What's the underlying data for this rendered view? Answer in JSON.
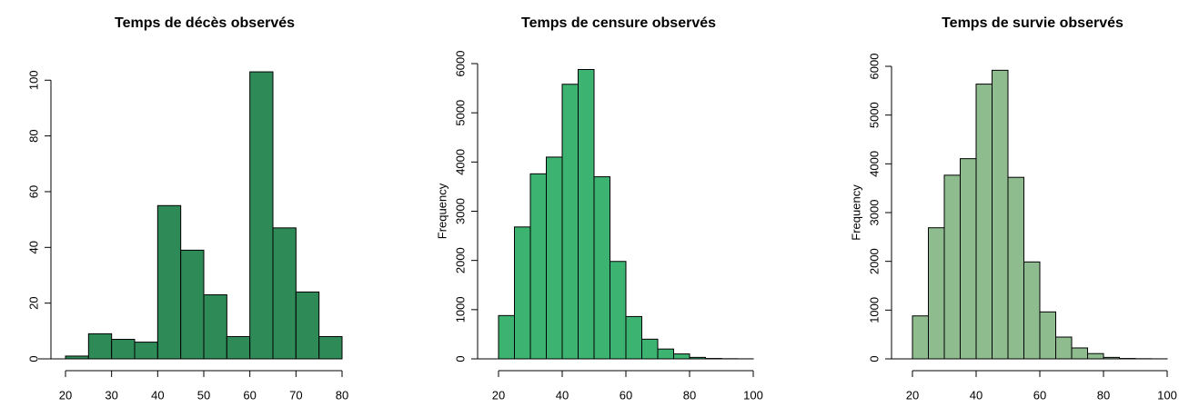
{
  "chart_data": [
    {
      "type": "histogram",
      "title": "Temps de décès observés",
      "bins": [
        20,
        25,
        30,
        35,
        40,
        45,
        50,
        55,
        60,
        65,
        70,
        75,
        80
      ],
      "values": [
        1,
        9,
        7,
        6,
        55,
        39,
        23,
        8,
        103,
        47,
        24,
        8
      ],
      "color": "#2e8b57",
      "xlim": [
        20,
        80
      ],
      "ylim": [
        0,
        104
      ],
      "xticks": [
        20,
        30,
        40,
        50,
        60,
        70,
        80
      ],
      "yticks": [
        0,
        20,
        40,
        60,
        80,
        100
      ]
    },
    {
      "type": "histogram",
      "title": "Temps de censure observés",
      "ylabel": "Frequency",
      "bins": [
        20,
        25,
        30,
        35,
        40,
        45,
        50,
        55,
        60,
        65,
        70,
        75,
        80,
        85,
        90,
        95,
        100
      ],
      "values": [
        880,
        2680,
        3760,
        4100,
        5580,
        5880,
        3700,
        1980,
        860,
        400,
        200,
        100,
        30,
        8,
        3,
        1
      ],
      "color": "#3cb371",
      "xlim": [
        20,
        100
      ],
      "ylim": [
        0,
        6000
      ],
      "xticks": [
        20,
        40,
        60,
        80,
        100
      ],
      "yticks": [
        0,
        1000,
        2000,
        3000,
        4000,
        5000,
        6000
      ]
    },
    {
      "type": "histogram",
      "title": "Temps de survie observés",
      "ylabel": "Frequency",
      "bins": [
        20,
        25,
        30,
        35,
        40,
        45,
        50,
        55,
        60,
        65,
        70,
        75,
        80,
        85,
        90,
        95,
        100
      ],
      "values": [
        881,
        2689,
        3767,
        4106,
        5635,
        5919,
        3723,
        1988,
        963,
        447,
        224,
        108,
        30,
        8,
        3,
        1
      ],
      "color": "#8fbc8f",
      "xlim": [
        20,
        100
      ],
      "ylim": [
        0,
        6000
      ],
      "xticks": [
        20,
        40,
        60,
        80,
        100
      ],
      "yticks": [
        0,
        1000,
        2000,
        3000,
        4000,
        5000,
        6000
      ]
    }
  ]
}
